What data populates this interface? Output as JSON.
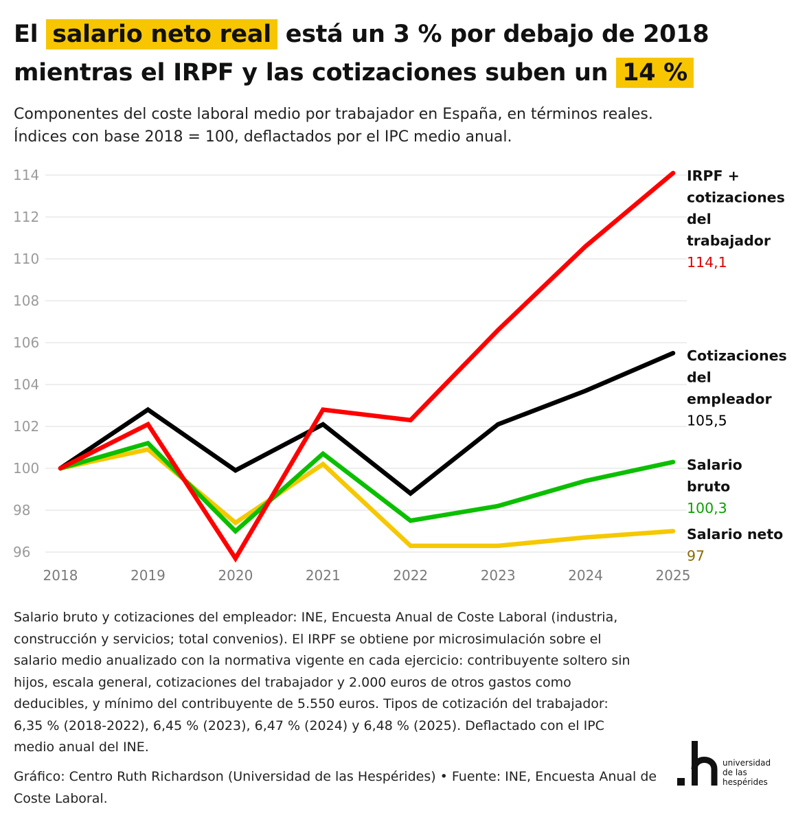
{
  "title": {
    "part1": "El",
    "hl1": "salario neto real",
    "part2": "está un 3 % por debajo de 2018 mientras el IRPF y las cotizaciones suben un",
    "hl2": "14 %"
  },
  "subtitle": {
    "line1": "Componentes del coste laboral medio por trabajador en España, en términos reales.",
    "line2": "Índices con base 2018 = 100, deflactados por el IPC medio anual."
  },
  "chart_data": {
    "type": "line",
    "x": [
      2018,
      2019,
      2020,
      2021,
      2022,
      2023,
      2024,
      2025
    ],
    "ylim": [
      96,
      114
    ],
    "yticks": [
      96,
      98,
      100,
      102,
      104,
      106,
      108,
      110,
      112,
      114
    ],
    "grid": true,
    "series": [
      {
        "name": "Salario neto",
        "color": "#f5c800",
        "label_color": "#8a6a00",
        "end_label": "97",
        "values": [
          100,
          100.9,
          97.4,
          100.2,
          96.3,
          96.3,
          96.7,
          97
        ]
      },
      {
        "name": "Salario bruto",
        "color": "#0bbf00",
        "label_color": "#0aa000",
        "end_label": "100,3",
        "values": [
          100,
          101.2,
          97.0,
          100.7,
          97.5,
          98.2,
          99.4,
          100.3
        ]
      },
      {
        "name": "Cotizaciones del empleador",
        "color": "#000000",
        "label_color": "#000000",
        "end_label": "105,5",
        "values": [
          100,
          102.8,
          99.9,
          102.1,
          98.8,
          102.1,
          103.7,
          105.5
        ]
      },
      {
        "name": "IRPF + cotizaciones del trabajador",
        "color": "#ff0000",
        "label_color": "#e00000",
        "end_label": "114,1",
        "values": [
          100,
          102.1,
          95.7,
          102.8,
          102.3,
          106.6,
          110.6,
          114.1
        ]
      }
    ]
  },
  "series_labels": [
    {
      "lines": [
        "IRPF +",
        "cotizaciones",
        "del",
        "trabajador"
      ],
      "value": "114,1",
      "color": "#e00000"
    },
    {
      "lines": [
        "Cotizaciones",
        "del",
        "empleador"
      ],
      "value": "105,5",
      "color": "#000000"
    },
    {
      "lines": [
        "Salario",
        "bruto"
      ],
      "value": "100,3",
      "color": "#0aa000"
    },
    {
      "lines": [
        "Salario neto"
      ],
      "value": "97",
      "color": "#8a6a00"
    }
  ],
  "notes": "Salario bruto y cotizaciones del empleador: INE, Encuesta Anual de Coste Laboral (industria, construcción y servicios; total convenios). El IRPF se obtiene por microsimulación sobre el salario medio anualizado con la normativa vigente en cada ejercicio: contribuyente soltero sin hijos, escala general, cotizaciones del trabajador y 2.000 euros de otros gastos como deducibles, y mínimo del contribuyente de 5.550 euros. Tipos de cotización del trabajador: 6,35 % (2018-2022), 6,45 % (2023), 6,47 % (2024) y 6,48 % (2025). Deflactado con el IPC medio anual del INE.",
  "credit": "Gráfico: Centro Ruth Richardson (Universidad de las Hespérides) • Fuente: INE, Encuesta Anual de Coste Laboral.",
  "logo": {
    "mark": ".h",
    "lines": [
      "universidad",
      "de las",
      "hespérides"
    ]
  }
}
